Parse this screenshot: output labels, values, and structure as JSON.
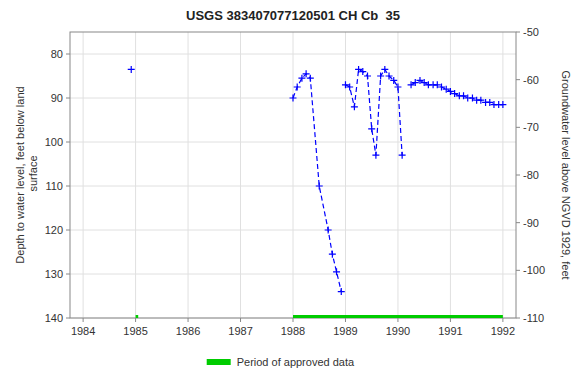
{
  "chart_data": {
    "type": "line",
    "title": "USGS 383407077120501 CH Cb  35",
    "y_label": "Depth to water level, feet below land\n surface",
    "y2_label": "Groundwater level above NGVD 1929, feet",
    "xlim": [
      1983.75,
      1992.25
    ],
    "ylim": [
      140,
      75
    ],
    "y2lim": [
      -110,
      -50
    ],
    "xticks": [
      1984,
      1985,
      1986,
      1987,
      1988,
      1989,
      1990,
      1991,
      1992
    ],
    "yticks": [
      80,
      90,
      100,
      110,
      120,
      130,
      140
    ],
    "y2ticks": [
      -50,
      -60,
      -70,
      -80,
      -90,
      -100,
      -110
    ],
    "grid": true,
    "legend": "bottom",
    "series": [
      {
        "type": "line",
        "color": "#0000ff",
        "line_style": "dashed",
        "marker": "plus",
        "x": [
          1984.917
        ],
        "values": [
          83.5
        ]
      },
      {
        "type": "line",
        "color": "#0000ff",
        "line_style": "dashed",
        "marker": "plus",
        "x": [
          1988.0,
          1988.08,
          1988.17,
          1988.25,
          1988.33,
          1988.5,
          1988.67,
          1988.75,
          1988.83,
          1988.92
        ],
        "values": [
          90.0,
          87.5,
          85.5,
          84.5,
          85.5,
          110.0,
          120.0,
          125.5,
          129.5,
          134.0
        ]
      },
      {
        "type": "line",
        "color": "#0000ff",
        "line_style": "dashed",
        "marker": "plus",
        "x": [
          1989.0,
          1989.08,
          1989.17,
          1989.25,
          1989.33,
          1989.42,
          1989.5,
          1989.58,
          1989.67,
          1989.75,
          1989.83,
          1989.92,
          1990.0,
          1990.08
        ],
        "values": [
          87.0,
          87.5,
          92.0,
          83.5,
          84.0,
          85.0,
          97.0,
          103.0,
          85.0,
          83.5,
          85.0,
          86.0,
          87.5,
          103.0
        ]
      },
      {
        "type": "line",
        "color": "#0000ff",
        "line_style": "dashed",
        "marker": "plus",
        "x": [
          1990.25,
          1990.33,
          1990.42,
          1990.5,
          1990.58,
          1990.67,
          1990.75,
          1990.83,
          1990.92,
          1991.0,
          1991.08,
          1991.17,
          1991.25,
          1991.33,
          1991.42,
          1991.5,
          1991.58,
          1991.67,
          1991.75,
          1991.83,
          1991.92,
          1992.0
        ],
        "values": [
          87.0,
          86.5,
          86.0,
          86.5,
          87.0,
          87.0,
          87.0,
          87.5,
          88.0,
          88.5,
          89.0,
          89.5,
          89.5,
          90.0,
          90.0,
          90.5,
          90.5,
          91.0,
          91.0,
          91.5,
          91.5,
          91.5
        ]
      },
      {
        "type": "span",
        "name": "Period of approved data",
        "color": "#00cc00",
        "x": [
          [
            1985.0,
            1985.05
          ],
          [
            1988.0,
            1992.0
          ]
        ],
        "values": [
          140,
          140
        ]
      }
    ]
  }
}
